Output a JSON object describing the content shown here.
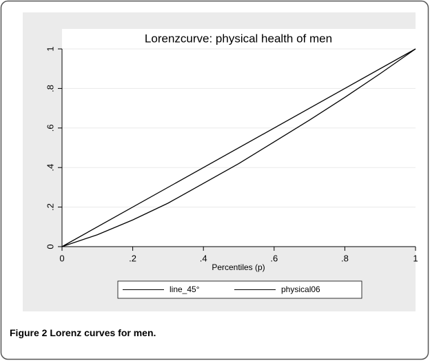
{
  "chart_data": {
    "type": "line",
    "title": "Lorenzcurve: physical health of men",
    "xlabel": "Percentiles (p)",
    "caption_label": "Figure 2",
    "caption": "Lorenz curves for men.",
    "series": [
      {
        "name": "line_45°",
        "color": "#000000",
        "x": [
          0,
          1
        ],
        "values": [
          0,
          1
        ]
      },
      {
        "name": "physical06",
        "color": "#000000",
        "x": [
          0,
          0.1,
          0.2,
          0.3,
          0.4,
          0.5,
          0.6,
          0.7,
          0.8,
          0.9,
          1
        ],
        "values": [
          0,
          0.06,
          0.135,
          0.22,
          0.32,
          0.42,
          0.53,
          0.64,
          0.755,
          0.875,
          1
        ]
      }
    ],
    "xlim": [
      0,
      1
    ],
    "ylim": [
      0,
      1
    ],
    "xticks": [
      0,
      {
        "value": 0.2,
        "label": ".2"
      },
      {
        "value": 0.4,
        "label": ".4"
      },
      {
        "value": 0.6,
        "label": ".6"
      },
      {
        "value": 0.8,
        "label": ".8"
      },
      1
    ],
    "yticks": [
      0,
      {
        "value": 0.2,
        "label": ".2"
      },
      {
        "value": 0.4,
        "label": ".4"
      },
      {
        "value": 0.6,
        "label": ".6"
      },
      {
        "value": 0.8,
        "label": ".8"
      },
      1
    ],
    "grid": true,
    "legend": "bottom"
  }
}
